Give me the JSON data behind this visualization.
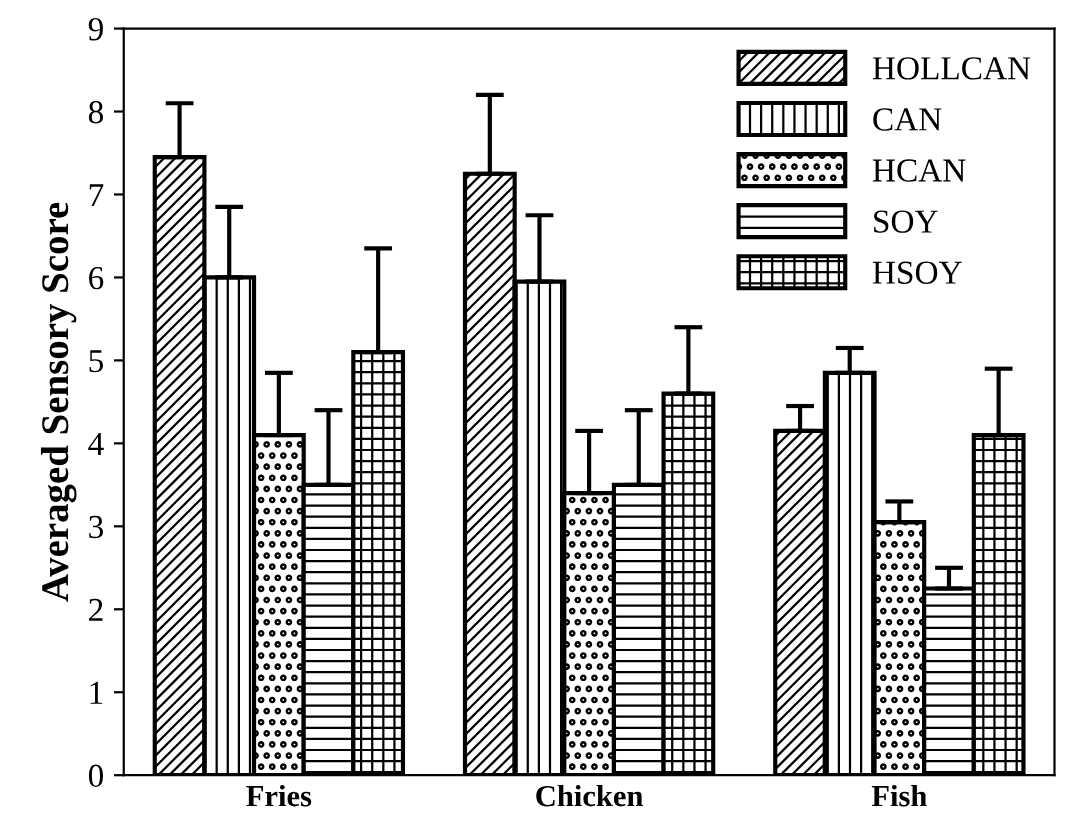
{
  "chart_data": {
    "type": "bar",
    "ylabel": "Averaged Sensory Score",
    "categories": [
      "Fries",
      "Chicken",
      "Fish"
    ],
    "series": [
      {
        "name": "HOLLCAN",
        "color": "#000000",
        "values": [
          7.45,
          7.25,
          4.15
        ],
        "errors": [
          [
            7.45,
            8.1
          ],
          [
            7.25,
            8.2
          ],
          [
            4.15,
            4.45
          ]
        ]
      },
      {
        "name": "CAN",
        "color": "#000000",
        "values": [
          6.0,
          5.95,
          4.85
        ],
        "errors": [
          [
            6.0,
            6.85
          ],
          [
            5.95,
            6.75
          ],
          [
            4.85,
            5.15
          ]
        ]
      },
      {
        "name": "HCAN",
        "color": "#000000",
        "values": [
          4.1,
          3.4,
          3.05
        ],
        "errors": [
          [
            4.1,
            4.85
          ],
          [
            3.4,
            4.15
          ],
          [
            3.05,
            3.3
          ]
        ]
      },
      {
        "name": "SOY",
        "color": "#000000",
        "values": [
          3.5,
          3.5,
          2.25
        ],
        "errors": [
          [
            3.5,
            4.4
          ],
          [
            3.5,
            4.4
          ],
          [
            2.25,
            2.5
          ]
        ]
      },
      {
        "name": "HSOY",
        "color": "#000000",
        "values": [
          5.1,
          4.6,
          4.1
        ],
        "errors": [
          [
            5.1,
            6.35
          ],
          [
            4.6,
            5.4
          ],
          [
            4.1,
            4.9
          ]
        ]
      }
    ],
    "ylim": [
      0,
      9
    ],
    "yticks": [
      0,
      1,
      2,
      3,
      4,
      5,
      6,
      7,
      8,
      9
    ],
    "legend": "top right",
    "grid": false
  }
}
